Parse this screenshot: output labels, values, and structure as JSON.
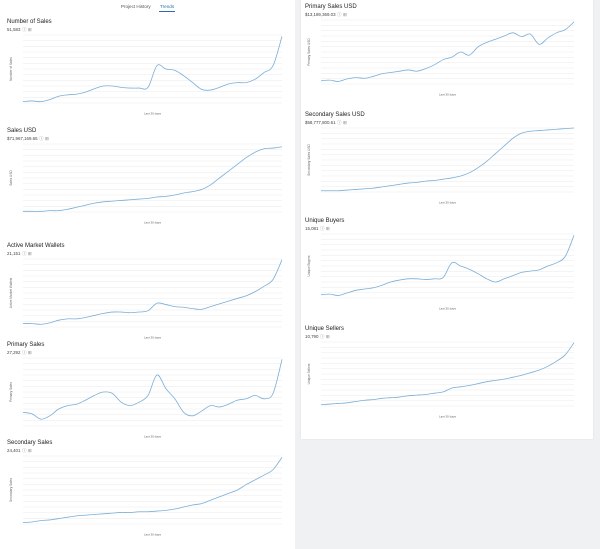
{
  "tabs": [
    {
      "label": "Project History",
      "active": false
    },
    {
      "label": "Trends",
      "active": true
    }
  ],
  "x_label": "Last 30 days",
  "line_color": "#7aaed8",
  "grid_color": "#e4e4e4",
  "icons": [
    "info-icon",
    "expand-icon"
  ],
  "chart_data": [
    {
      "id": "number-of-sales",
      "column": "left",
      "type": "line",
      "title": "Number of Sales",
      "value": "51,583",
      "ylabel": "Number of Sales",
      "xlabel": "Last 30 days",
      "grid": true,
      "values": [
        0.02,
        0.03,
        0.02,
        0.05,
        0.1,
        0.12,
        0.13,
        0.16,
        0.21,
        0.25,
        0.25,
        0.23,
        0.22,
        0.22,
        0.23,
        0.55,
        0.5,
        0.48,
        0.4,
        0.3,
        0.2,
        0.19,
        0.23,
        0.28,
        0.3,
        0.3,
        0.35,
        0.45,
        0.55,
        0.98
      ]
    },
    {
      "id": "sales-usd",
      "column": "left",
      "type": "line",
      "title": "Sales USD",
      "value": "$71,967,169.65",
      "ylabel": "Sales USD",
      "xlabel": "Last 30 days",
      "grid": true,
      "values": [
        0.01,
        0.01,
        0.01,
        0.02,
        0.02,
        0.04,
        0.07,
        0.1,
        0.13,
        0.15,
        0.16,
        0.17,
        0.18,
        0.19,
        0.2,
        0.22,
        0.23,
        0.25,
        0.28,
        0.3,
        0.33,
        0.4,
        0.5,
        0.6,
        0.7,
        0.8,
        0.88,
        0.93,
        0.94,
        0.96
      ]
    },
    {
      "id": "active-market-wallets",
      "column": "left",
      "type": "line",
      "title": "Active Market Wallets",
      "value": "21,151",
      "ylabel": "Active Market Wallets",
      "xlabel": "Last 30 days",
      "grid": true,
      "values": [
        0.05,
        0.05,
        0.04,
        0.06,
        0.1,
        0.12,
        0.12,
        0.14,
        0.17,
        0.2,
        0.22,
        0.22,
        0.21,
        0.22,
        0.24,
        0.35,
        0.33,
        0.3,
        0.29,
        0.27,
        0.26,
        0.3,
        0.34,
        0.38,
        0.42,
        0.46,
        0.52,
        0.6,
        0.7,
        0.99
      ]
    },
    {
      "id": "primary-sales",
      "column": "left",
      "type": "line",
      "title": "Primary Sales",
      "value": "27,292",
      "ylabel": "Primary Sales",
      "xlabel": "Last 30 days",
      "grid": true,
      "values": [
        0.2,
        0.18,
        0.1,
        0.15,
        0.25,
        0.3,
        0.32,
        0.38,
        0.45,
        0.5,
        0.48,
        0.35,
        0.3,
        0.35,
        0.45,
        0.75,
        0.55,
        0.4,
        0.2,
        0.15,
        0.22,
        0.3,
        0.28,
        0.32,
        0.38,
        0.4,
        0.45,
        0.4,
        0.48,
        0.98
      ]
    },
    {
      "id": "secondary-sales",
      "column": "left",
      "type": "line",
      "title": "Secondary Sales",
      "value": "24,401",
      "ylabel": "Secondary Sales",
      "xlabel": "Last 30 days",
      "grid": true,
      "values": [
        0.02,
        0.03,
        0.05,
        0.06,
        0.08,
        0.1,
        0.12,
        0.13,
        0.14,
        0.15,
        0.16,
        0.17,
        0.17,
        0.18,
        0.18,
        0.19,
        0.2,
        0.22,
        0.25,
        0.28,
        0.3,
        0.35,
        0.4,
        0.45,
        0.5,
        0.58,
        0.65,
        0.72,
        0.8,
        0.98
      ]
    },
    {
      "id": "primary-sales-usd",
      "column": "right",
      "type": "line",
      "title": "Primary Sales USD",
      "value": "$13,189,369.03",
      "ylabel": "Primary Sales USD",
      "xlabel": "Last 30 days",
      "grid": true,
      "values": [
        0.05,
        0.06,
        0.04,
        0.08,
        0.1,
        0.09,
        0.12,
        0.16,
        0.18,
        0.2,
        0.22,
        0.2,
        0.24,
        0.3,
        0.38,
        0.42,
        0.5,
        0.45,
        0.58,
        0.65,
        0.7,
        0.75,
        0.8,
        0.74,
        0.78,
        0.62,
        0.72,
        0.8,
        0.85,
        0.97
      ]
    },
    {
      "id": "secondary-sales-usd",
      "column": "right",
      "type": "line",
      "title": "Secondary Sales USD",
      "value": "$58,777,800.61",
      "ylabel": "Secondary Sales USD",
      "xlabel": "Last 30 days",
      "grid": true,
      "values": [
        0.02,
        0.02,
        0.02,
        0.03,
        0.04,
        0.05,
        0.06,
        0.08,
        0.1,
        0.12,
        0.14,
        0.15,
        0.17,
        0.18,
        0.2,
        0.22,
        0.25,
        0.3,
        0.38,
        0.48,
        0.6,
        0.72,
        0.84,
        0.92,
        0.95,
        0.96,
        0.97,
        0.98,
        0.99,
        1.0
      ]
    },
    {
      "id": "unique-buyers",
      "column": "right",
      "type": "line",
      "title": "Unique Buyers",
      "value": "15,081",
      "ylabel": "Unique Buyers",
      "xlabel": "Last 30 days",
      "grid": true,
      "values": [
        0.05,
        0.06,
        0.04,
        0.08,
        0.12,
        0.14,
        0.16,
        0.2,
        0.25,
        0.28,
        0.3,
        0.3,
        0.29,
        0.3,
        0.32,
        0.55,
        0.5,
        0.45,
        0.38,
        0.3,
        0.25,
        0.3,
        0.35,
        0.4,
        0.42,
        0.44,
        0.5,
        0.55,
        0.65,
        0.98
      ]
    },
    {
      "id": "unique-sellers",
      "column": "right",
      "type": "line",
      "title": "Unique Sellers",
      "value": "10,790",
      "ylabel": "Unique Sellers",
      "xlabel": "Last 30 days",
      "grid": true,
      "values": [
        0.02,
        0.03,
        0.04,
        0.05,
        0.07,
        0.09,
        0.1,
        0.12,
        0.13,
        0.14,
        0.16,
        0.17,
        0.18,
        0.2,
        0.22,
        0.28,
        0.3,
        0.32,
        0.35,
        0.38,
        0.4,
        0.42,
        0.45,
        0.48,
        0.52,
        0.56,
        0.62,
        0.7,
        0.8,
        0.99
      ]
    }
  ]
}
